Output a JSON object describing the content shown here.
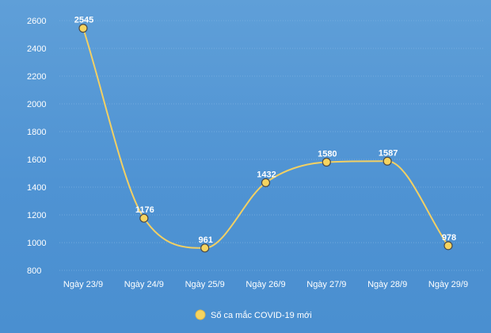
{
  "chart_data": {
    "type": "line",
    "categories": [
      "Ngày 23/9",
      "Ngày 24/9",
      "Ngày 25/9",
      "Ngày 26/9",
      "Ngày 27/9",
      "Ngày 28/9",
      "Ngày 29/9"
    ],
    "series": [
      {
        "name": "Số ca mắc COVID-19 mới",
        "values": [
          2545,
          1176,
          961,
          1432,
          1580,
          1587,
          978
        ]
      }
    ],
    "yticks": [
      800,
      1000,
      1200,
      1400,
      1600,
      1800,
      2000,
      2200,
      2400,
      2600
    ],
    "ylim": [
      800,
      2600
    ],
    "grid": true,
    "legend_position": "bottom",
    "colors": {
      "line": "#f2d064",
      "marker_fill": "#f6d45f",
      "marker_stroke": "#4a4a4a",
      "grid": "#7fb2e3",
      "text": "#ffffff"
    }
  }
}
